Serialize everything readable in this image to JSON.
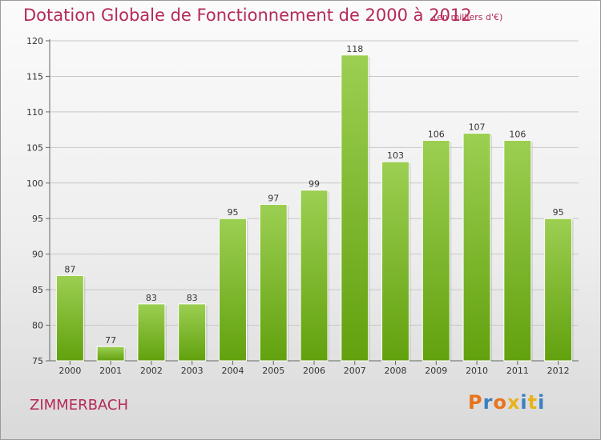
{
  "header": {
    "title": "Dotation Globale de Fonctionnement de 2000 à 2012",
    "unit": "(en milliers d'€)"
  },
  "footer": {
    "commune": "ZIMMERBACH",
    "logo_text": "Proxiti",
    "logo_colors": [
      "#e8741c",
      "#3a7fc0",
      "#e8741c",
      "#e8b21c",
      "#3a7fc0",
      "#e8b21c",
      "#3a7fc0"
    ]
  },
  "chart_data": {
    "type": "bar",
    "categories": [
      "2000",
      "2001",
      "2002",
      "2003",
      "2004",
      "2005",
      "2006",
      "2007",
      "2008",
      "2009",
      "2010",
      "2011",
      "2012"
    ],
    "values": [
      87,
      77,
      83,
      83,
      95,
      97,
      99,
      118,
      103,
      106,
      107,
      106,
      95
    ],
    "ylim": [
      75,
      120
    ],
    "yticks": [
      75,
      80,
      85,
      90,
      95,
      100,
      105,
      110,
      115,
      120
    ],
    "grid": true,
    "colors": {
      "bar_top": "#9ccf52",
      "bar_bottom": "#62a10e",
      "grid": "#c8c8c8",
      "axis": "#666666"
    }
  }
}
